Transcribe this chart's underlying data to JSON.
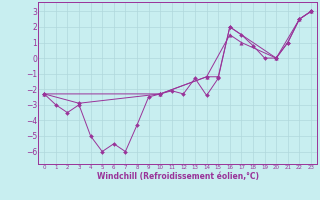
{
  "xlabel": "Windchill (Refroidissement éolien,°C)",
  "bg_color": "#c8eef0",
  "grid_color": "#b0d8dc",
  "line_color": "#993399",
  "xlim": [
    -0.5,
    23.5
  ],
  "ylim": [
    -6.8,
    3.6
  ],
  "yticks": [
    3,
    2,
    1,
    0,
    -1,
    -2,
    -3,
    -4,
    -5,
    -6
  ],
  "xticks": [
    0,
    1,
    2,
    3,
    4,
    5,
    6,
    7,
    8,
    9,
    10,
    11,
    12,
    13,
    14,
    15,
    16,
    17,
    18,
    19,
    20,
    21,
    22,
    23
  ],
  "line1_x": [
    0,
    1,
    2,
    3,
    4,
    5,
    6,
    7,
    8,
    9,
    10,
    11,
    12,
    13,
    14,
    15,
    16,
    17,
    18,
    19,
    20,
    21,
    22,
    23
  ],
  "line1_y": [
    -2.3,
    -3.0,
    -3.5,
    -3.0,
    -5.0,
    -6.0,
    -5.5,
    -6.0,
    -4.3,
    -2.5,
    -2.3,
    -2.1,
    -2.3,
    -1.3,
    -2.4,
    -1.3,
    2.0,
    1.5,
    0.8,
    0.0,
    0.0,
    1.0,
    2.5,
    3.0
  ],
  "line2_x": [
    0,
    3,
    10,
    14,
    15,
    16,
    20,
    21,
    22,
    23
  ],
  "line2_y": [
    -2.3,
    -2.9,
    -2.3,
    -1.2,
    -1.2,
    2.0,
    0.0,
    1.0,
    2.5,
    3.0
  ],
  "line3_x": [
    0,
    10,
    14,
    16,
    17,
    20,
    22,
    23
  ],
  "line3_y": [
    -2.3,
    -2.3,
    -1.2,
    1.5,
    1.0,
    0.0,
    2.5,
    3.0
  ]
}
